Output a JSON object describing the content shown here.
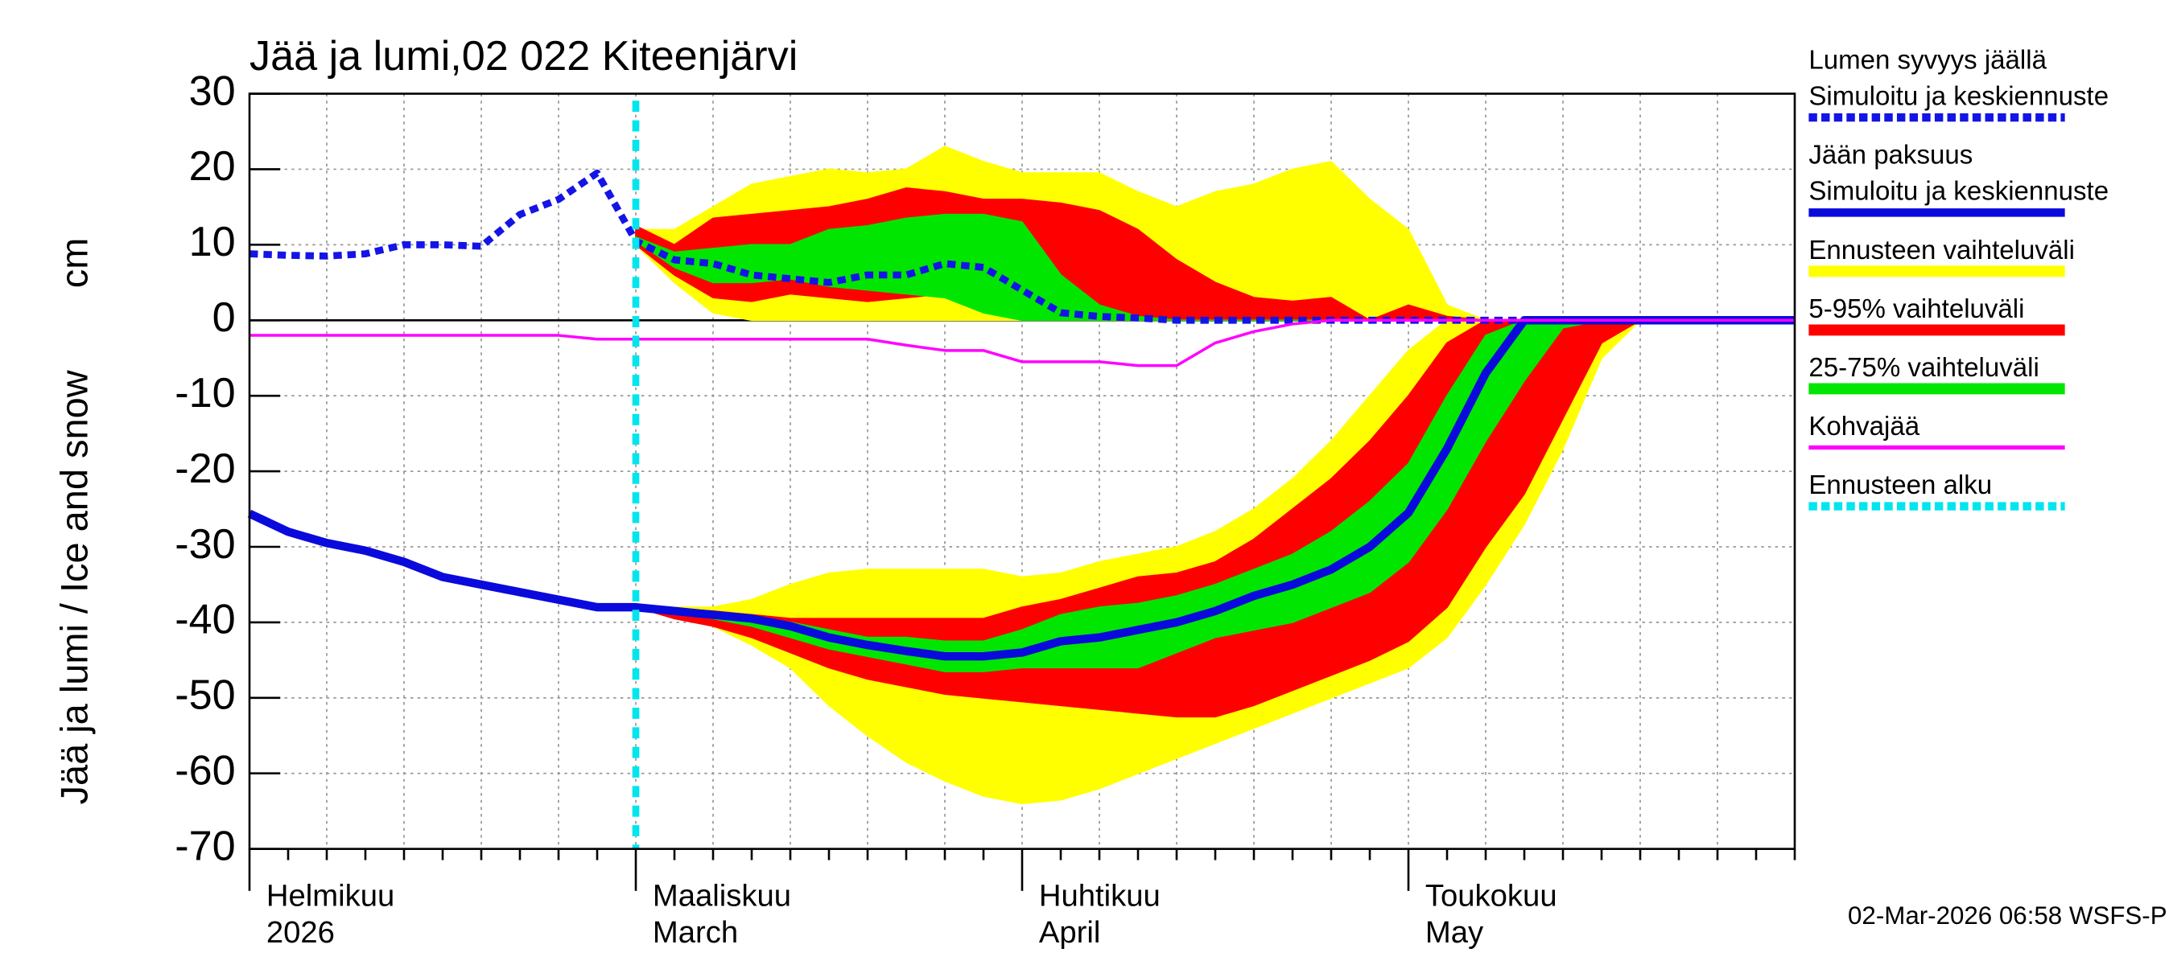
{
  "chart_data": {
    "type": "ice-forecast",
    "title": "Jää ja lumi,02 022 Kiteenjärvi",
    "y_label": "Jää ja lumi / Ice and snow",
    "y_unit": "cm",
    "footer": "02-Mar-2026 06:58 WSFS-P",
    "categories": [
      [
        "Helmikuu",
        "2026"
      ],
      null,
      null,
      null,
      null,
      null,
      null,
      null,
      null,
      null,
      [
        "Maaliskuu",
        "March"
      ],
      null,
      null,
      null,
      null,
      null,
      null,
      null,
      null,
      null,
      [
        "Huhtikuu",
        "April"
      ],
      null,
      null,
      null,
      null,
      null,
      null,
      null,
      null,
      null,
      [
        "Toukokuu",
        "May"
      ],
      null,
      null,
      null,
      null,
      null,
      null,
      null,
      null,
      null,
      null
    ],
    "ylim": [
      -70,
      30
    ],
    "yticks": [
      -70,
      -60,
      -50,
      -40,
      -30,
      -20,
      -10,
      0,
      10,
      20,
      30
    ],
    "grid": true,
    "series": [
      {
        "name": "Lumen syvyys jäällä",
        "subname": "Simuloitu ja keskiennuste",
        "color": "#1414e6",
        "kind": "line",
        "dashed": true,
        "values": [
          8.8,
          8.6,
          8.5,
          8.8,
          10,
          10,
          9.8,
          14,
          16,
          19.5,
          10.5,
          8,
          7.5,
          6,
          5.5,
          5,
          6,
          6,
          7.5,
          7,
          4,
          1,
          0.5,
          0.3,
          0,
          0,
          0,
          0,
          0,
          0,
          0,
          0,
          0,
          0,
          0,
          0,
          0,
          0,
          0,
          0,
          0
        ]
      },
      {
        "name": "Jään paksuus",
        "subname": "Simuloitu ja keskiennuste",
        "color": "#0a0adc",
        "kind": "line",
        "dashed": false,
        "values": [
          -25.6,
          -28,
          -29.5,
          -30.5,
          -32,
          -34,
          -35,
          -36,
          -37,
          -38,
          -38,
          -38.5,
          -39,
          -39.5,
          -40.5,
          -42,
          -43,
          -43.8,
          -44.5,
          -44.5,
          -44,
          -42.5,
          -42,
          -41,
          -40,
          -38.5,
          -36.5,
          -35,
          -33,
          -30,
          -25.5,
          -17,
          -7,
          0,
          0,
          0,
          0,
          0,
          0,
          0,
          0
        ]
      },
      {
        "name": "Ennusteen vaihteluväli",
        "color": "#ffff00",
        "kind": "band",
        "bands": [
          {
            "high": [
              null,
              null,
              null,
              null,
              null,
              null,
              null,
              null,
              null,
              null,
              12,
              12,
              15,
              18,
              19,
              20,
              19.5,
              20,
              23,
              21,
              19.5,
              19.5,
              19.5,
              17,
              15,
              17,
              18,
              20,
              21,
              16,
              12,
              2,
              0,
              0,
              0,
              0,
              0,
              0,
              0,
              0,
              0
            ],
            "low": [
              null,
              null,
              null,
              null,
              null,
              null,
              null,
              null,
              null,
              null,
              10,
              5,
              1,
              0,
              0,
              0,
              0,
              0,
              0,
              0,
              0,
              0,
              0,
              0,
              0,
              0,
              0,
              0,
              0,
              0,
              0,
              0,
              0,
              0,
              0,
              0,
              0,
              0,
              0,
              0,
              0
            ]
          },
          {
            "high": [
              null,
              null,
              null,
              null,
              null,
              null,
              null,
              null,
              null,
              null,
              -38,
              -38,
              -38,
              -37,
              -35,
              -33.5,
              -33,
              -33,
              -33,
              -33,
              -34,
              -33.5,
              -32,
              -31,
              -30,
              -28,
              -25,
              -21,
              -16,
              -10,
              -4,
              0,
              0,
              0,
              0,
              0,
              0,
              0,
              0,
              0,
              0
            ],
            "low": [
              null,
              null,
              null,
              null,
              null,
              null,
              null,
              null,
              null,
              null,
              -38,
              -39,
              -40.5,
              -43,
              -46,
              -51,
              -55,
              -58.5,
              -61,
              -63,
              -64,
              -63.5,
              -62,
              -60,
              -58,
              -56,
              -54,
              -52,
              -50,
              -48,
              -46,
              -42,
              -35,
              -27,
              -17,
              -5,
              0,
              0,
              0,
              0,
              0
            ]
          }
        ]
      },
      {
        "name": "5-95% vaihteluväli",
        "color": "#ff0000",
        "kind": "band",
        "bands": [
          {
            "high": [
              null,
              null,
              null,
              null,
              null,
              null,
              null,
              null,
              null,
              null,
              12.5,
              10,
              13.5,
              14,
              14.5,
              15,
              16,
              17.5,
              17,
              16,
              16,
              15.5,
              14.5,
              12,
              8,
              5,
              3,
              2.5,
              3,
              0,
              2,
              0.5,
              0,
              0,
              0,
              0,
              0,
              0,
              0,
              0,
              0
            ],
            "low": [
              null,
              null,
              null,
              null,
              null,
              null,
              null,
              null,
              null,
              null,
              10,
              6,
              3,
              2.5,
              3.5,
              3,
              2.5,
              3,
              3.5,
              3,
              2,
              0.5,
              0,
              0,
              0,
              0,
              0,
              0,
              0,
              0,
              0,
              0,
              0,
              0,
              0,
              0,
              0,
              0,
              0,
              0,
              0
            ]
          },
          {
            "high": [
              null,
              null,
              null,
              null,
              null,
              null,
              null,
              null,
              null,
              null,
              -38,
              -38.2,
              -38.5,
              -39,
              -39.5,
              -39.5,
              -39.5,
              -39.5,
              -39.5,
              -39.5,
              -38,
              -37,
              -35.5,
              -34,
              -33.5,
              -32,
              -29,
              -25,
              -21,
              -16,
              -10,
              -3,
              0,
              0,
              0,
              0,
              0,
              0,
              0,
              0,
              0
            ],
            "low": [
              null,
              null,
              null,
              null,
              null,
              null,
              null,
              null,
              null,
              null,
              -38,
              -39.5,
              -40.5,
              -42,
              -44,
              -46,
              -47.5,
              -48.5,
              -49.5,
              -50,
              -50.5,
              -51,
              -51.5,
              -52,
              -52.5,
              -52.5,
              -51,
              -49,
              -47,
              -45,
              -42.5,
              -38,
              -30,
              -23,
              -13,
              -3,
              0,
              0,
              0,
              0,
              0
            ]
          }
        ]
      },
      {
        "name": "25-75% vaihteluväli",
        "color": "#00e600",
        "kind": "band",
        "bands": [
          {
            "high": [
              null,
              null,
              null,
              null,
              null,
              null,
              null,
              null,
              null,
              null,
              11,
              9,
              9.5,
              10,
              10,
              12,
              12.5,
              13.5,
              14,
              14,
              13,
              6,
              2,
              0.5,
              0,
              0,
              0,
              0,
              0,
              0,
              0,
              0,
              0,
              0,
              0,
              0,
              0,
              0,
              0,
              0,
              0
            ],
            "low": [
              null,
              null,
              null,
              null,
              null,
              null,
              null,
              null,
              null,
              null,
              10.5,
              7,
              5,
              5,
              5.5,
              4.5,
              4,
              3.5,
              3,
              1,
              0,
              0,
              0,
              0,
              0,
              0,
              0,
              0,
              0,
              0,
              0,
              0,
              0,
              0,
              0,
              0,
              0,
              0,
              0,
              0,
              0
            ]
          },
          {
            "high": [
              null,
              null,
              null,
              null,
              null,
              null,
              null,
              null,
              null,
              null,
              -38,
              -38.3,
              -38.8,
              -39.3,
              -40,
              -41,
              -42,
              -42,
              -42.5,
              -42.5,
              -41,
              -39,
              -38,
              -37.5,
              -36.5,
              -35,
              -33,
              -31,
              -28,
              -24,
              -19,
              -10,
              -2,
              0,
              0,
              0,
              0,
              0,
              0,
              0,
              0
            ],
            "low": [
              null,
              null,
              null,
              null,
              null,
              null,
              null,
              null,
              null,
              null,
              -38,
              -38.8,
              -39.5,
              -40.5,
              -42,
              -43.5,
              -44.5,
              -45.5,
              -46.5,
              -46.5,
              -46,
              -46,
              -46,
              -46,
              -44,
              -42,
              -41,
              -40,
              -38,
              -36,
              -32,
              -25,
              -16,
              -8,
              -1,
              0,
              0,
              0,
              0,
              0,
              0
            ]
          }
        ]
      },
      {
        "name": "Kohvajää",
        "color": "#ff00ff",
        "kind": "line",
        "dashed": false,
        "thin": true,
        "values": [
          -2,
          -2,
          -2,
          -2,
          -2,
          -2,
          -2,
          -2,
          -2,
          -2.5,
          -2.5,
          -2.5,
          -2.5,
          -2.5,
          -2.5,
          -2.5,
          -2.5,
          -3.3,
          -4,
          -4,
          -5.5,
          -5.5,
          -5.5,
          -6,
          -6,
          -3,
          -1.5,
          -0.5,
          0,
          0,
          0,
          0,
          0,
          0,
          0,
          0,
          0,
          0,
          0,
          0,
          0
        ]
      },
      {
        "name": "Ennusteen alku",
        "color": "#00e5ee",
        "kind": "vline",
        "dashed": true
      }
    ]
  }
}
